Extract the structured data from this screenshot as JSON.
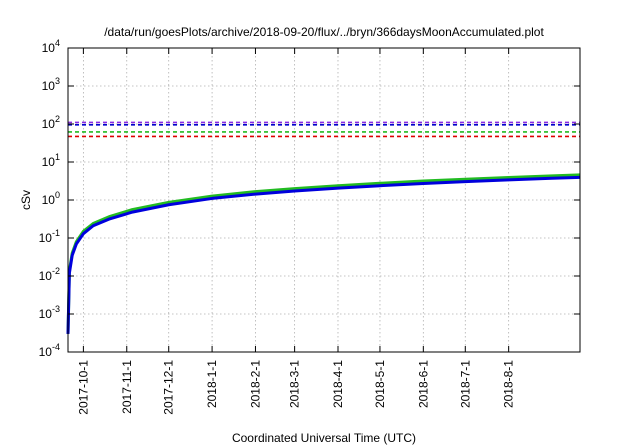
{
  "chart_data": {
    "type": "line",
    "title": "/data/run/goesPlots/archive/2018-09-20/flux/../bryn/366daysMoonAccumulated.plot",
    "xlabel": "Coordinated Universal Time (UTC)",
    "ylabel": "cSv",
    "y_scale": "log",
    "ylim": [
      0.0001,
      10000
    ],
    "xlim": [
      "2017-09-20",
      "2018-09-21"
    ],
    "grid": true,
    "y_ticks": [
      {
        "value": 0.0001,
        "base": "10",
        "exp": "-4"
      },
      {
        "value": 0.001,
        "base": "10",
        "exp": "-3"
      },
      {
        "value": 0.01,
        "base": "10",
        "exp": "-2"
      },
      {
        "value": 0.1,
        "base": "10",
        "exp": "-1"
      },
      {
        "value": 1,
        "base": "10",
        "exp": "0"
      },
      {
        "value": 10,
        "base": "10",
        "exp": "1"
      },
      {
        "value": 100,
        "base": "10",
        "exp": "2"
      },
      {
        "value": 1000,
        "base": "10",
        "exp": "3"
      },
      {
        "value": 10000,
        "base": "10",
        "exp": "4"
      }
    ],
    "x_ticks": [
      "2017-10-1",
      "2017-11-1",
      "2017-12-1",
      "2018-1-1",
      "2018-2-1",
      "2018-3-1",
      "2018-4-1",
      "2018-5-1",
      "2018-6-1",
      "2018-7-1",
      "2018-8-1"
    ],
    "reference_lines": [
      {
        "value": 110,
        "color": "#8a2be2",
        "style": "dashed"
      },
      {
        "value": 95,
        "color": "#0000cc",
        "style": "dashed"
      },
      {
        "value": 62,
        "color": "#22bb22",
        "style": "dashed"
      },
      {
        "value": 47,
        "color": "#dd0000",
        "style": "dashed"
      }
    ],
    "series": [
      {
        "color": "#22bb22",
        "x": [
          "2017-09-20",
          "2017-09-21",
          "2017-09-23",
          "2017-09-26",
          "2017-10-01",
          "2017-10-08",
          "2017-10-20",
          "2017-11-05",
          "2017-12-01",
          "2018-01-01",
          "2018-02-01",
          "2018-03-01",
          "2018-04-01",
          "2018-05-01",
          "2018-06-01",
          "2018-07-01",
          "2018-08-01",
          "2018-09-01",
          "2018-09-21"
        ],
        "values": [
          0.0003,
          0.014,
          0.04,
          0.08,
          0.15,
          0.24,
          0.37,
          0.56,
          0.87,
          1.27,
          1.66,
          2.0,
          2.38,
          2.76,
          3.15,
          3.52,
          3.92,
          4.32,
          4.58
        ]
      },
      {
        "color": "#0000dd",
        "x": [
          "2017-09-20",
          "2017-09-21",
          "2017-09-23",
          "2017-09-26",
          "2017-10-01",
          "2017-10-08",
          "2017-10-20",
          "2017-11-05",
          "2017-12-01",
          "2018-01-01",
          "2018-02-01",
          "2018-03-01",
          "2018-04-01",
          "2018-05-01",
          "2018-06-01",
          "2018-07-01",
          "2018-08-01",
          "2018-09-01",
          "2018-09-21"
        ],
        "values": [
          0.0003,
          0.012,
          0.035,
          0.07,
          0.13,
          0.21,
          0.32,
          0.48,
          0.75,
          1.1,
          1.43,
          1.73,
          2.06,
          2.38,
          2.72,
          3.04,
          3.38,
          3.73,
          3.95
        ]
      }
    ]
  }
}
